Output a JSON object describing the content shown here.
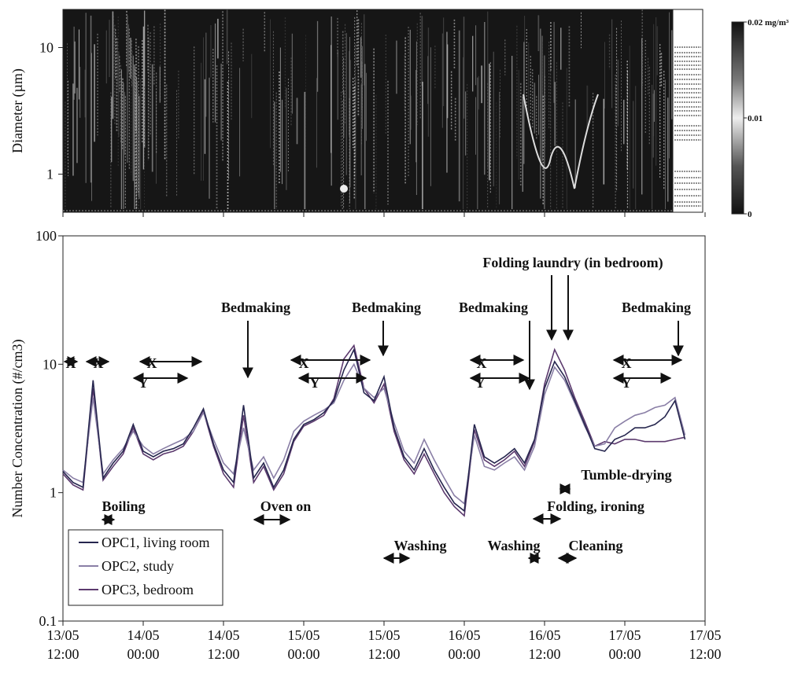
{
  "chart_data": [
    {
      "type": "heatmap",
      "ylabel": "Diameter (µm)",
      "ylog": true,
      "ylim": [
        0.5,
        20
      ],
      "yticks": [
        1,
        10
      ],
      "clim": [
        0,
        0.02
      ],
      "cticks": [
        {
          "value": 0.02,
          "label": "0.02 mg/m³"
        },
        {
          "value": 0.01,
          "label": "0.01"
        },
        0
      ]
    },
    {
      "type": "line",
      "ylabel": "Number Concentration (#/cm3)",
      "ylog": true,
      "ylim": [
        0.1,
        100
      ],
      "yticks": [
        0.1,
        1,
        10,
        100
      ],
      "xlim": [
        0,
        96
      ],
      "xticks": [
        {
          "value": 0,
          "label": "13/05 12:00"
        },
        {
          "value": 12,
          "label": "14/05 00:00"
        },
        {
          "value": 24,
          "label": "14/05 12:00"
        },
        {
          "value": 36,
          "label": "15/05 00:00"
        },
        {
          "value": 48,
          "label": "15/05 12:00"
        },
        {
          "value": 60,
          "label": "16/05 00:00"
        },
        {
          "value": 72,
          "label": "16/05 12:00"
        },
        {
          "value": 84,
          "label": "17/05 00:00"
        },
        {
          "value": 96,
          "label": "17/05 12:00"
        }
      ],
      "legend": "lower left",
      "x": [
        0,
        1.5,
        3,
        4.5,
        6,
        7.5,
        9,
        10.5,
        12,
        13.5,
        15,
        16.5,
        18,
        19.5,
        21,
        22.5,
        24,
        25.5,
        27,
        28.5,
        30,
        31.5,
        33,
        34.5,
        36,
        37.5,
        39,
        40.5,
        42,
        43.5,
        45,
        46.5,
        48,
        49.5,
        51,
        52.5,
        54,
        55.5,
        57,
        58.5,
        60,
        61.5,
        63,
        64.5,
        66,
        67.5,
        69,
        70.5,
        72,
        73.5,
        75,
        76.5,
        78,
        79.5,
        81,
        82.5,
        84,
        85.5,
        87,
        88.5,
        90,
        91.5,
        93
      ],
      "series": [
        {
          "name": "OPC1, living room",
          "color": "#26264e",
          "values": [
            1.46,
            1.2,
            1.1,
            7.5,
            1.3,
            1.7,
            2.1,
            3.4,
            2.1,
            1.9,
            2.1,
            2.2,
            2.4,
            3.2,
            4.5,
            2.4,
            1.5,
            1.2,
            4.8,
            1.3,
            1.7,
            1.1,
            1.5,
            2.6,
            3.4,
            3.7,
            4.2,
            5.2,
            9,
            13,
            6,
            5.2,
            8,
            3.2,
            1.9,
            1.5,
            2.2,
            1.5,
            1.1,
            0.83,
            0.72,
            3.4,
            1.9,
            1.7,
            1.9,
            2.2,
            1.7,
            2.6,
            6.5,
            10.5,
            8,
            5.2,
            3.4,
            2.2,
            2.1,
            2.6,
            2.8,
            3.2,
            3.2,
            3.4,
            3.9,
            5.2,
            2.6
          ]
        },
        {
          "name": "OPC2, study",
          "color": "#8a7fa6",
          "values": [
            1.5,
            1.3,
            1.2,
            5.5,
            1.4,
            1.8,
            2.2,
            3.0,
            2.3,
            2.0,
            2.2,
            2.4,
            2.6,
            3.0,
            4.2,
            2.6,
            1.7,
            1.4,
            3.2,
            1.5,
            1.9,
            1.3,
            1.8,
            3.0,
            3.6,
            4.0,
            4.4,
            5.0,
            7.5,
            10,
            6.5,
            5.5,
            6.5,
            3.5,
            2.1,
            1.7,
            2.6,
            1.8,
            1.3,
            0.95,
            0.82,
            2.8,
            1.6,
            1.5,
            1.7,
            1.9,
            1.5,
            2.3,
            5.8,
            9.5,
            7.5,
            5.0,
            3.3,
            2.3,
            2.4,
            3.2,
            3.6,
            4.0,
            4.2,
            4.6,
            4.8,
            5.5,
            2.8
          ]
        },
        {
          "name": "OPC3, bedroom",
          "color": "#5c3a6e",
          "values": [
            1.4,
            1.15,
            1.05,
            6.5,
            1.25,
            1.6,
            2.0,
            3.2,
            2.0,
            1.8,
            2.0,
            2.1,
            2.3,
            3.0,
            4.3,
            2.3,
            1.4,
            1.1,
            4.0,
            1.2,
            1.6,
            1.05,
            1.4,
            2.5,
            3.3,
            3.6,
            4.0,
            5.4,
            11,
            14,
            6.5,
            5.0,
            7,
            3.0,
            1.8,
            1.4,
            2.0,
            1.4,
            1.0,
            0.78,
            0.66,
            3.1,
            1.8,
            1.6,
            1.8,
            2.1,
            1.6,
            2.5,
            7,
            13,
            9,
            5.5,
            3.6,
            2.3,
            2.5,
            2.4,
            2.6,
            2.6,
            2.5,
            2.5,
            2.5,
            2.6,
            2.7
          ]
        }
      ],
      "annotations": [
        "X",
        "X",
        "X",
        "X",
        "X",
        "X",
        "Y",
        "Y",
        "Y",
        "Y",
        "Bedmaking",
        "Bedmaking",
        "Bedmaking",
        "Bedmaking",
        "Folding laundry (in bedroom)",
        "Boiling",
        "Oven on",
        "Washing",
        "Washing",
        "Tumble-drying",
        "Folding, ironing",
        "Cleaning"
      ]
    }
  ]
}
